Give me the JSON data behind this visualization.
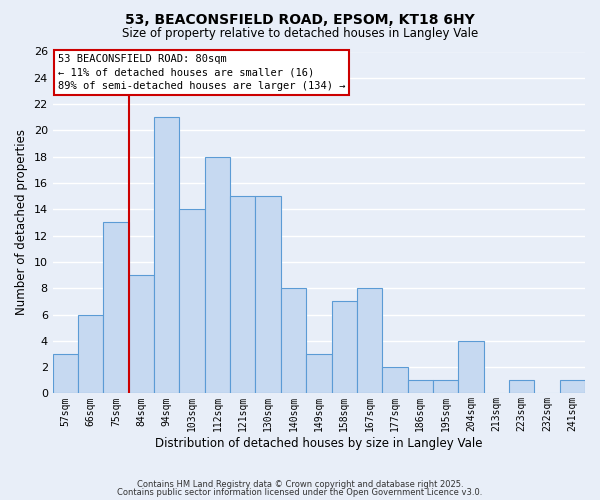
{
  "title1": "53, BEACONSFIELD ROAD, EPSOM, KT18 6HY",
  "title2": "Size of property relative to detached houses in Langley Vale",
  "xlabel": "Distribution of detached houses by size in Langley Vale",
  "ylabel": "Number of detached properties",
  "bar_labels": [
    "57sqm",
    "66sqm",
    "75sqm",
    "84sqm",
    "94sqm",
    "103sqm",
    "112sqm",
    "121sqm",
    "130sqm",
    "140sqm",
    "149sqm",
    "158sqm",
    "167sqm",
    "177sqm",
    "186sqm",
    "195sqm",
    "204sqm",
    "213sqm",
    "223sqm",
    "232sqm",
    "241sqm"
  ],
  "bar_values": [
    3,
    6,
    13,
    9,
    21,
    14,
    18,
    15,
    15,
    8,
    3,
    7,
    8,
    2,
    1,
    1,
    4,
    0,
    1,
    0,
    1
  ],
  "bar_color": "#c6d9f1",
  "bar_edgecolor": "#5b9bd5",
  "vline_color": "#cc0000",
  "ylim": [
    0,
    26
  ],
  "yticks": [
    0,
    2,
    4,
    6,
    8,
    10,
    12,
    14,
    16,
    18,
    20,
    22,
    24,
    26
  ],
  "annotation_title": "53 BEACONSFIELD ROAD: 80sqm",
  "annotation_line1": "← 11% of detached houses are smaller (16)",
  "annotation_line2": "89% of semi-detached houses are larger (134) →",
  "annotation_box_facecolor": "#ffffff",
  "annotation_box_edgecolor": "#cc0000",
  "footer1": "Contains HM Land Registry data © Crown copyright and database right 2025.",
  "footer2": "Contains public sector information licensed under the Open Government Licence v3.0.",
  "bg_color": "#e8eef8",
  "grid_color": "#ffffff",
  "title1_fontsize": 10,
  "title2_fontsize": 8.5
}
